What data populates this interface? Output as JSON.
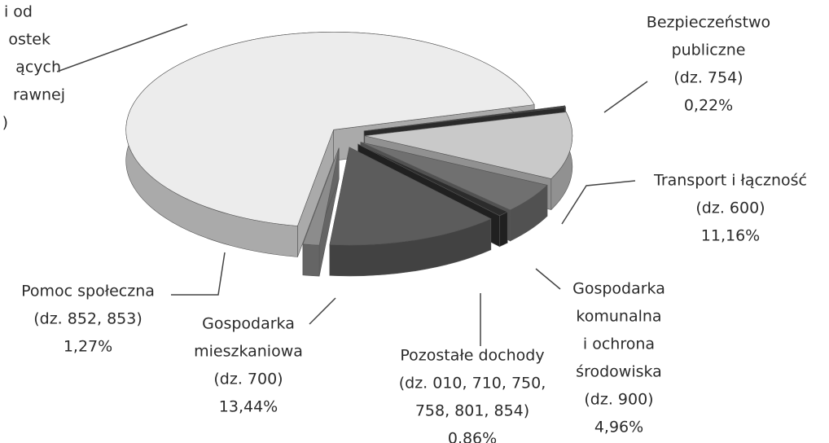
{
  "chart_data": {
    "type": "pie",
    "labels": [
      [
        "i od",
        "ostek",
        "ących",
        "rawnej",
        ")"
      ],
      [
        "Bezpieczeństwo",
        "publiczne",
        "(dz. 754)"
      ],
      [
        "Transport i łączność",
        "(dz. 600)"
      ],
      [
        "Gospodarka",
        "komunalna",
        "i ochrona",
        "środowiska",
        "(dz. 900)"
      ],
      [
        "Pozostałe dochody",
        "(dz. 010, 710, 750,",
        "758, 801, 854)"
      ],
      [
        "Gospodarka",
        "mieszkaniowa",
        "(dz. 700)"
      ],
      [
        "Pomoc społeczna",
        "(dz. 852, 853)"
      ]
    ],
    "values": [
      68.09,
      0.22,
      11.16,
      4.96,
      0.86,
      13.44,
      1.27
    ],
    "value_labels": [
      null,
      "0,22%",
      "11,16%",
      "4,96%",
      "0,86%",
      "13,44%",
      "1,27%"
    ],
    "colors": [
      "#ececec",
      "#3a3a3a",
      "#c9c9c9",
      "#707070",
      "#2c2c2c",
      "#5c5c5c",
      "#8c8c8c"
    ]
  }
}
